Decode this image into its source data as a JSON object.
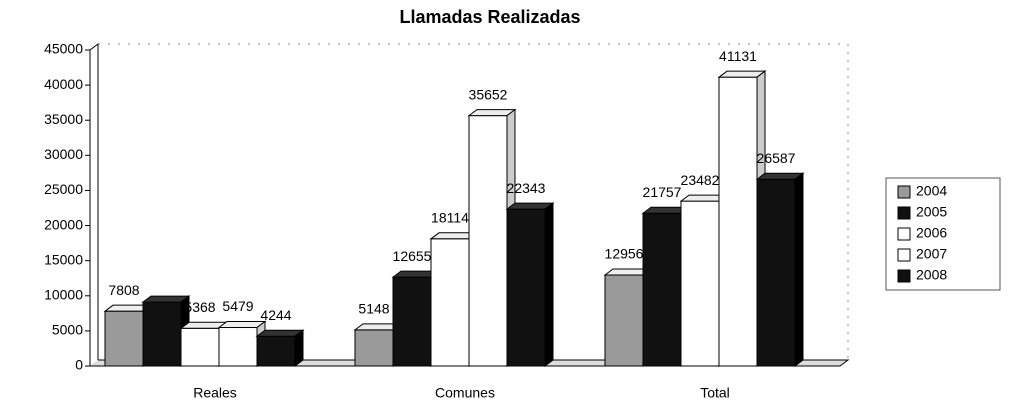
{
  "chart_data": {
    "type": "bar3d",
    "title": "Llamadas Realizadas",
    "categories": [
      "Reales",
      "Comunes",
      "Total"
    ],
    "series": [
      {
        "name": "2004",
        "color": "#9a9a9a",
        "values": [
          7808,
          5148,
          12956
        ]
      },
      {
        "name": "2005",
        "color": "#111111",
        "values": [
          9102,
          12655,
          21757
        ],
        "value_labels": [
          null,
          "12655",
          "21757"
        ]
      },
      {
        "name": "2006",
        "color": "#ffffff",
        "values": [
          5368,
          18114,
          23482
        ]
      },
      {
        "name": "2007",
        "color": "#ffffff",
        "values": [
          5479,
          35652,
          41131
        ]
      },
      {
        "name": "2008",
        "color": "#111111",
        "values": [
          4244,
          22343,
          26587
        ]
      }
    ],
    "ylim": [
      0,
      45000
    ],
    "yticks": [
      0,
      5000,
      10000,
      15000,
      20000,
      25000,
      30000,
      35000,
      40000,
      45000
    ],
    "legend": "right"
  }
}
